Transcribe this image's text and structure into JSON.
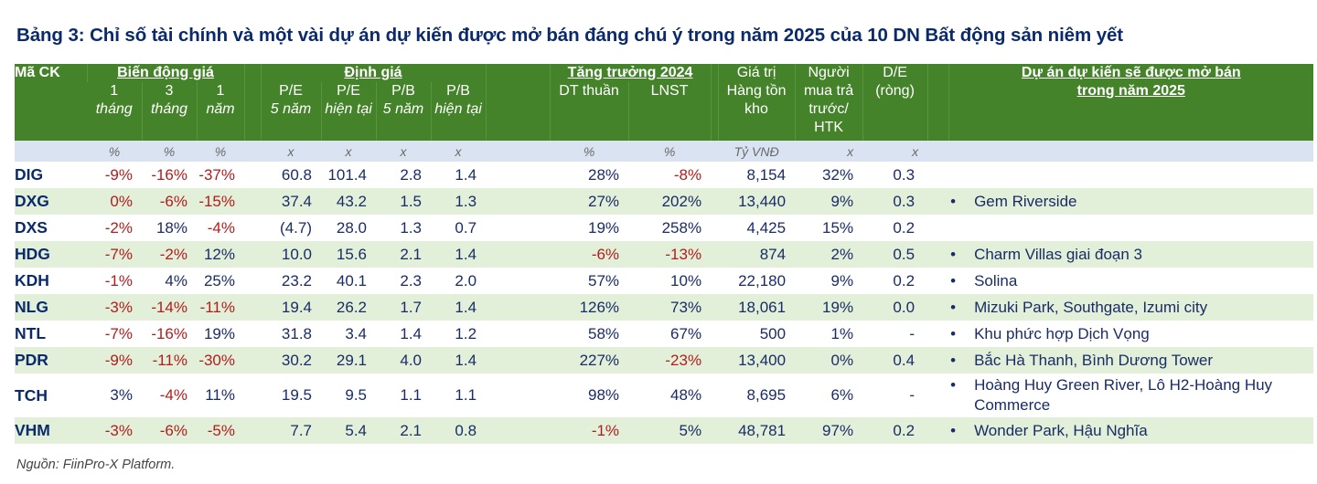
{
  "title": "Bảng 3: Chỉ số tài chính và một vài dự án dự kiến được mở bán đáng chú ý trong năm 2025 của 10 DN Bất động sản niêm yết",
  "header": {
    "ticker": "Mã CK",
    "price_change_group": "Biến động giá",
    "valuation_group": "Định giá",
    "growth_group": "Tăng trưởng 2024",
    "inventory": [
      "Giá trị",
      "Hàng tồn",
      "kho"
    ],
    "prepaid": [
      "Người",
      "mua trả",
      "trước/",
      "HTK"
    ],
    "de": [
      "D/E",
      "(ròng)"
    ],
    "projects": [
      "Dự án dự kiến sẽ được mở bán",
      "trong năm 2025"
    ],
    "cols": {
      "m1": [
        "1",
        "tháng"
      ],
      "m3": [
        "3",
        "tháng"
      ],
      "y1": [
        "1",
        "năm"
      ],
      "pe5": [
        "P/E",
        "5 năm"
      ],
      "pe_now": [
        "P/E",
        "hiện tại"
      ],
      "pb5": [
        "P/B",
        "5 năm"
      ],
      "pb_now": [
        "P/B",
        "hiện tại"
      ],
      "revenue": "DT thuần",
      "npat": "LNST"
    }
  },
  "units": {
    "m1": "%",
    "m3": "%",
    "y1": "%",
    "pe5": "x",
    "pe_now": "x",
    "pb5": "x",
    "pb_now": "x",
    "revenue": "%",
    "npat": "%",
    "inventory": "Tỷ VNĐ",
    "prepaid": "x",
    "de": "x"
  },
  "rows": [
    {
      "ticker": "DIG",
      "m1": "-9%",
      "m3": "-16%",
      "y1": "-37%",
      "pe5": "60.8",
      "pe_now": "101.4",
      "pb5": "2.8",
      "pb_now": "1.4",
      "revenue": "28%",
      "npat": "-8%",
      "inventory": "8,154",
      "prepaid": "32%",
      "de": "0.3",
      "projects": ""
    },
    {
      "ticker": "DXG",
      "m1": "0%",
      "m3": "-6%",
      "y1": "-15%",
      "pe5": "37.4",
      "pe_now": "43.2",
      "pb5": "1.5",
      "pb_now": "1.3",
      "revenue": "27%",
      "npat": "202%",
      "inventory": "13,440",
      "prepaid": "9%",
      "de": "0.3",
      "projects": "Gem Riverside"
    },
    {
      "ticker": "DXS",
      "m1": "-2%",
      "m3": "18%",
      "y1": "-4%",
      "pe5": "(4.7)",
      "pe_now": "28.0",
      "pb5": "1.3",
      "pb_now": "0.7",
      "revenue": "19%",
      "npat": "258%",
      "inventory": "4,425",
      "prepaid": "15%",
      "de": "0.2",
      "projects": ""
    },
    {
      "ticker": "HDG",
      "m1": "-7%",
      "m3": "-2%",
      "y1": "12%",
      "pe5": "10.0",
      "pe_now": "15.6",
      "pb5": "2.1",
      "pb_now": "1.4",
      "revenue": "-6%",
      "npat": "-13%",
      "inventory": "874",
      "prepaid": "2%",
      "de": "0.5",
      "projects": "Charm Villas giai đoạn 3"
    },
    {
      "ticker": "KDH",
      "m1": "-1%",
      "m3": "4%",
      "y1": "25%",
      "pe5": "23.2",
      "pe_now": "40.1",
      "pb5": "2.3",
      "pb_now": "2.0",
      "revenue": "57%",
      "npat": "10%",
      "inventory": "22,180",
      "prepaid": "9%",
      "de": "0.2",
      "projects": "Solina"
    },
    {
      "ticker": "NLG",
      "m1": "-3%",
      "m3": "-14%",
      "y1": "-11%",
      "pe5": "19.4",
      "pe_now": "26.2",
      "pb5": "1.7",
      "pb_now": "1.4",
      "revenue": "126%",
      "npat": "73%",
      "inventory": "18,061",
      "prepaid": "19%",
      "de": "0.0",
      "projects": "Mizuki Park, Southgate, Izumi city"
    },
    {
      "ticker": "NTL",
      "m1": "-7%",
      "m3": "-16%",
      "y1": "19%",
      "pe5": "31.8",
      "pe_now": "3.4",
      "pb5": "1.4",
      "pb_now": "1.2",
      "revenue": "58%",
      "npat": "67%",
      "inventory": "500",
      "prepaid": "1%",
      "de": "-",
      "projects": "Khu phức hợp Dịch Vọng"
    },
    {
      "ticker": "PDR",
      "m1": "-9%",
      "m3": "-11%",
      "y1": "-30%",
      "pe5": "30.2",
      "pe_now": "29.1",
      "pb5": "4.0",
      "pb_now": "1.4",
      "revenue": "227%",
      "npat": "-23%",
      "inventory": "13,400",
      "prepaid": "0%",
      "de": "0.4",
      "projects": "Bắc Hà Thanh, Bình Dương Tower"
    },
    {
      "ticker": "TCH",
      "m1": "3%",
      "m3": "-4%",
      "y1": "11%",
      "pe5": "19.5",
      "pe_now": "9.5",
      "pb5": "1.1",
      "pb_now": "1.1",
      "revenue": "98%",
      "npat": "48%",
      "inventory": "8,695",
      "prepaid": "6%",
      "de": "-",
      "projects": "Hoàng Huy Green River, Lô H2-Hoàng Huy Commerce"
    },
    {
      "ticker": "VHM",
      "m1": "-3%",
      "m3": "-6%",
      "y1": "-5%",
      "pe5": "7.7",
      "pe_now": "5.4",
      "pb5": "2.1",
      "pb_now": "0.8",
      "revenue": "-1%",
      "npat": "5%",
      "inventory": "48,781",
      "prepaid": "97%",
      "de": "0.2",
      "projects": "Wonder Park, Hậu Nghĩa"
    }
  ],
  "bullet": "•",
  "colors": {
    "header_green": "#44832a",
    "units_blue": "#d9e3f1",
    "alt_row": "#e2f0d9",
    "text_navy": "#1a2c66",
    "negative_red": "#b01d1d",
    "title_navy": "#0b2a6b"
  },
  "source": "Nguồn: FiinPro-X Platform."
}
